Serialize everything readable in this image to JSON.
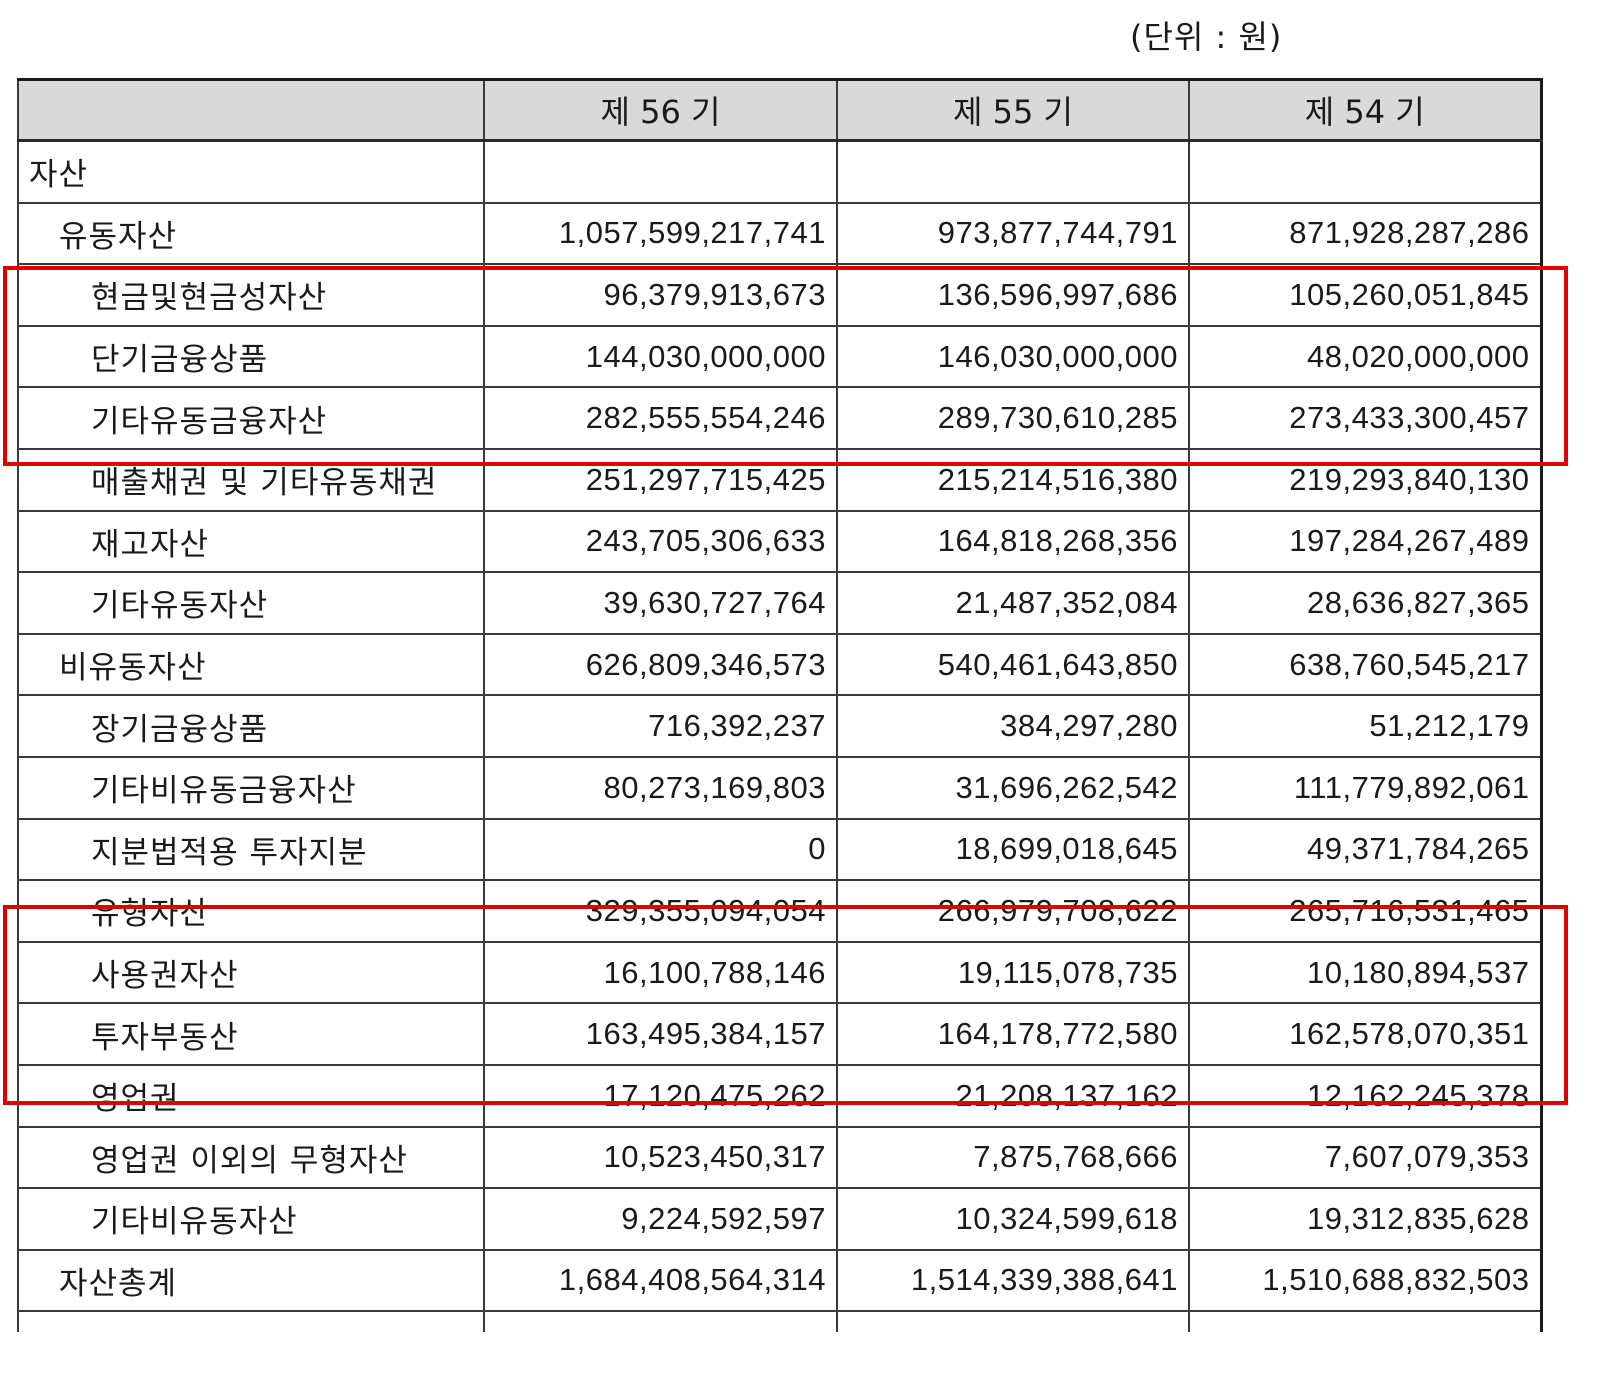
{
  "unit_label": "(단위 : 원)",
  "header": {
    "blank": "",
    "periods": [
      "제 56 기",
      "제 55 기",
      "제 54 기"
    ]
  },
  "rows": [
    {
      "label": "자산",
      "level": 0,
      "values": [
        "",
        "",
        ""
      ]
    },
    {
      "label": "유동자산",
      "level": 1,
      "values": [
        "1,057,599,217,741",
        "973,877,744,791",
        "871,928,287,286"
      ]
    },
    {
      "label": "현금및현금성자산",
      "level": 2,
      "values": [
        "96,379,913,673",
        "136,596,997,686",
        "105,260,051,845"
      ],
      "highlight_group": 1
    },
    {
      "label": "단기금융상품",
      "level": 2,
      "values": [
        "144,030,000,000",
        "146,030,000,000",
        "48,020,000,000"
      ],
      "highlight_group": 1
    },
    {
      "label": "기타유동금융자산",
      "level": 2,
      "values": [
        "282,555,554,246",
        "289,730,610,285",
        "273,433,300,457"
      ],
      "highlight_group": 1
    },
    {
      "label": "매출채권 및 기타유동채권",
      "level": 2,
      "values": [
        "251,297,715,425",
        "215,214,516,380",
        "219,293,840,130"
      ]
    },
    {
      "label": "재고자산",
      "level": 2,
      "values": [
        "243,705,306,633",
        "164,818,268,356",
        "197,284,267,489"
      ]
    },
    {
      "label": "기타유동자산",
      "level": 2,
      "values": [
        "39,630,727,764",
        "21,487,352,084",
        "28,636,827,365"
      ]
    },
    {
      "label": "비유동자산",
      "level": 1,
      "values": [
        "626,809,346,573",
        "540,461,643,850",
        "638,760,545,217"
      ]
    },
    {
      "label": "장기금융상품",
      "level": 2,
      "values": [
        "716,392,237",
        "384,297,280",
        "51,212,179"
      ]
    },
    {
      "label": "기타비유동금융자산",
      "level": 2,
      "values": [
        "80,273,169,803",
        "31,696,262,542",
        "111,779,892,061"
      ]
    },
    {
      "label": "지분법적용 투자지분",
      "level": 2,
      "values": [
        "0",
        "18,699,018,645",
        "49,371,784,265"
      ]
    },
    {
      "label": "유형자산",
      "level": 2,
      "values": [
        "329,355,094,054",
        "266,979,708,622",
        "265,716,531,465"
      ],
      "highlight_group": 2
    },
    {
      "label": "사용권자산",
      "level": 2,
      "values": [
        "16,100,788,146",
        "19,115,078,735",
        "10,180,894,537"
      ],
      "highlight_group": 2
    },
    {
      "label": "투자부동산",
      "level": 2,
      "values": [
        "163,495,384,157",
        "164,178,772,580",
        "162,578,070,351"
      ],
      "highlight_group": 2
    },
    {
      "label": "영업권",
      "level": 2,
      "values": [
        "17,120,475,262",
        "21,208,137,162",
        "12,162,245,378"
      ]
    },
    {
      "label": "영업권 이외의 무형자산",
      "level": 2,
      "values": [
        "10,523,450,317",
        "7,875,768,666",
        "7,607,079,353"
      ]
    },
    {
      "label": "기타비유동자산",
      "level": 2,
      "values": [
        "9,224,592,597",
        "10,324,599,618",
        "19,312,835,628"
      ]
    },
    {
      "label": "자산총계",
      "level": 1,
      "values": [
        "1,684,408,564,314",
        "1,514,339,388,641",
        "1,510,688,832,503"
      ]
    }
  ],
  "highlight_color": "#e00000",
  "header_bg": "#d9d9d9"
}
